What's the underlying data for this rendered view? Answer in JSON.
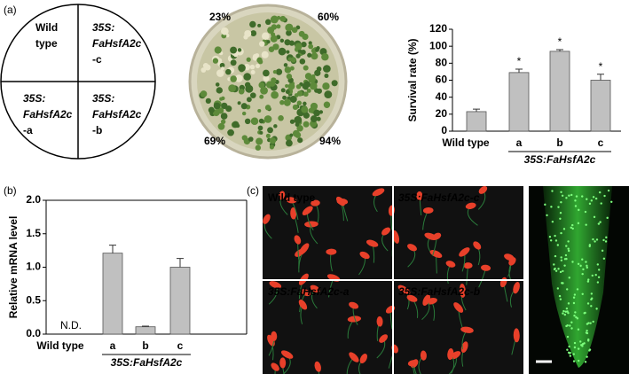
{
  "panel_labels": [
    "(a)",
    "(b)",
    "(c)"
  ],
  "diagram": {
    "quadrants": [
      [
        "Wild",
        "type"
      ],
      [
        "35S:",
        "FaHsfA2c",
        "-c"
      ],
      [
        "35S:",
        "FaHsfA2c",
        "-a"
      ],
      [
        "35S:",
        "FaHsfA2c",
        "-b"
      ]
    ]
  },
  "plate": {
    "labels": [
      "23%",
      "60%",
      "69%",
      "94%"
    ]
  },
  "micrographs": {
    "labels": [
      "Wild type",
      "35S:FaHsfA2c-c",
      "35S:FaHsfA2c-a",
      "35S:FaHsfA2c-b"
    ]
  },
  "chart_data": [
    {
      "type": "bar",
      "y_label": "Survival rate (%)",
      "categories": [
        "Wild type",
        "a",
        "b",
        "c"
      ],
      "group_label": "35S:FaHsfA2c",
      "values": [
        23,
        69,
        94,
        60
      ],
      "errors": [
        3,
        4,
        2,
        7
      ],
      "significance": [
        null,
        "*",
        "*",
        "*"
      ],
      "color": "#c0c0c0",
      "ylim": [
        0,
        120
      ],
      "yticks": [
        0,
        20,
        40,
        60,
        80,
        100,
        120
      ]
    },
    {
      "type": "bar",
      "y_label": "Relative mRNA level",
      "categories": [
        "Wild type",
        "a",
        "b",
        "c"
      ],
      "group_label": "35S:FaHsfA2c",
      "values": [
        null,
        1.21,
        0.11,
        1.0
      ],
      "errors": [
        null,
        0.12,
        0.01,
        0.13
      ],
      "missing_label": "N.D.",
      "color": "#c0c0c0",
      "ylim": [
        0,
        2
      ],
      "yticks": [
        {
          "value": 0,
          "label": "0.0"
        },
        0.5,
        {
          "value": 1,
          "label": "1.0"
        },
        1.5,
        {
          "value": 2,
          "label": "2.0"
        }
      ]
    }
  ]
}
